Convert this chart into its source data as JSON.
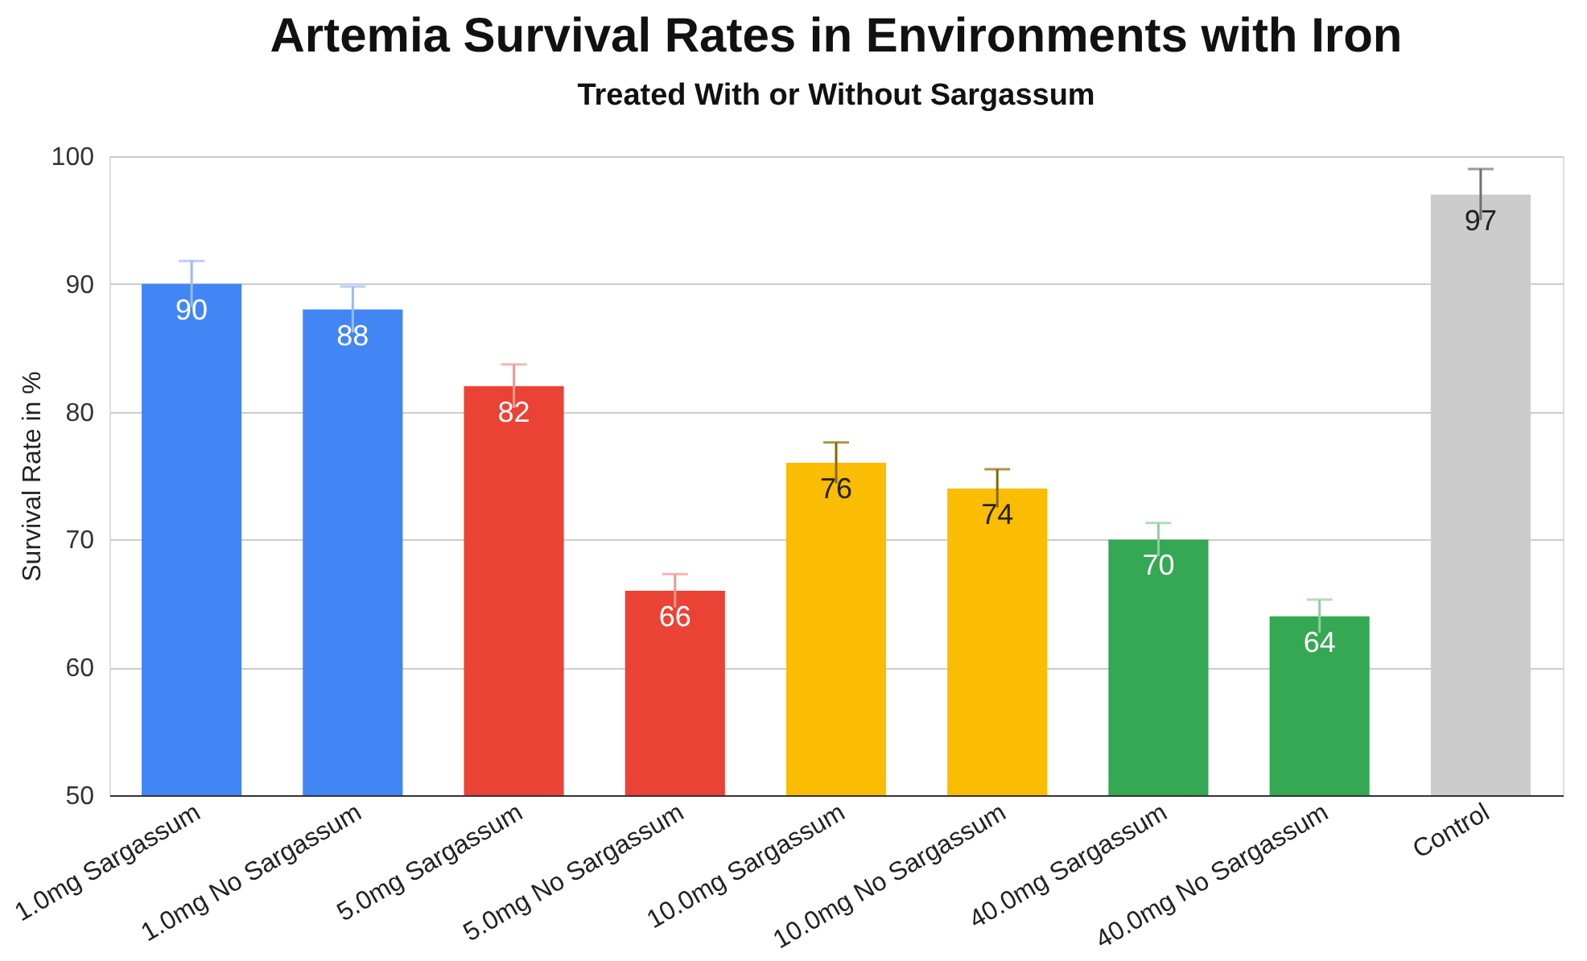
{
  "chart_data": {
    "type": "bar",
    "title": "Artemia Survival Rates in Environments with Iron",
    "subtitle": "Treated With or Without Sargassum",
    "ylabel": "Survival Rate in %",
    "categories": [
      "1.0mg Sargassum",
      "1.0mg No Sargassum",
      "5.0mg Sargassum",
      "5.0mg No Sargassum",
      "10.0mg Sargassum",
      "10.0mg No Sargassum",
      "40.0mg Sargassum",
      "40.0mg No Sargassum",
      "Control"
    ],
    "values": [
      90,
      88,
      82,
      66,
      76,
      74,
      70,
      64,
      97
    ],
    "colors": [
      "#4285f4",
      "#4285f4",
      "#ea4335",
      "#ea4335",
      "#fbbc04",
      "#fbbc04",
      "#34a853",
      "#34a853",
      "#cccccc"
    ],
    "errors": [
      1.8,
      1.8,
      1.7,
      1.3,
      1.6,
      1.5,
      1.3,
      1.3,
      2
    ],
    "ylim": [
      50,
      100
    ],
    "yticks": [
      50,
      60,
      70,
      80,
      90,
      100
    ],
    "grid": "y",
    "data_labels": true
  }
}
